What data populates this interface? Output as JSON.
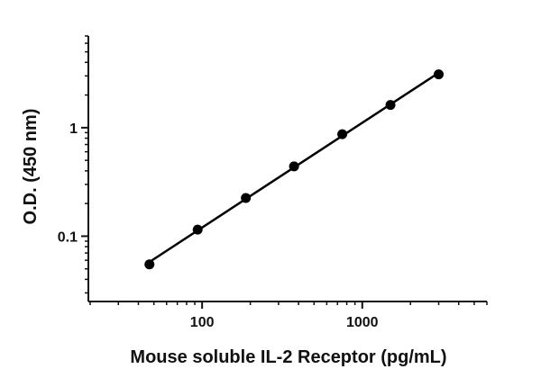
{
  "chart_data": {
    "type": "scatter",
    "title": "",
    "xlabel": "Mouse soluble IL-2 Receptor (pg/mL)",
    "ylabel": "O.D. (450 nm)",
    "x_scale": "log",
    "y_scale": "log",
    "xlim": [
      20,
      6000
    ],
    "ylim": [
      0.025,
      7
    ],
    "x_ticks": [
      {
        "value": 100,
        "label": "100"
      },
      {
        "value": 1000,
        "label": "1000"
      }
    ],
    "y_ticks": [
      {
        "value": 0.1,
        "label": "0.1"
      },
      {
        "value": 1,
        "label": "1"
      }
    ],
    "grid": false,
    "legend": "none",
    "series": [
      {
        "x": [
          46.9,
          93.8,
          187.5,
          375,
          750,
          1500,
          3000
        ],
        "y": [
          0.055,
          0.115,
          0.225,
          0.44,
          0.87,
          1.62,
          3.1
        ],
        "color": "#000000",
        "fit_line": true
      }
    ]
  }
}
